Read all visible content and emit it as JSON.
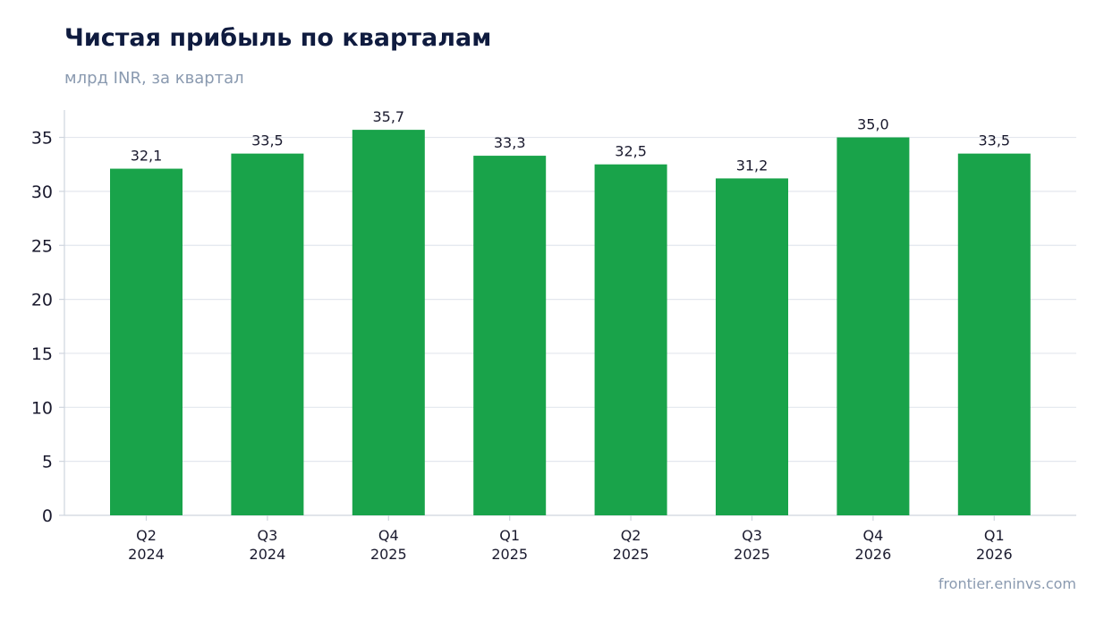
{
  "chart_data": {
    "type": "bar",
    "title": "Чистая прибыль по кварталам",
    "subtitle": "млрд INR, за квартал",
    "source": "frontier.eninvs.com",
    "xlabel": "",
    "ylabel": "",
    "ylim": [
      0,
      37.5
    ],
    "yticks": [
      0,
      5,
      10,
      15,
      20,
      25,
      30,
      35
    ],
    "grid": true,
    "legend": "none",
    "categories": [
      [
        "Q2",
        "2024"
      ],
      [
        "Q3",
        "2024"
      ],
      [
        "Q4",
        "2025"
      ],
      [
        "Q1",
        "2025"
      ],
      [
        "Q2",
        "2025"
      ],
      [
        "Q3",
        "2025"
      ],
      [
        "Q4",
        "2026"
      ],
      [
        "Q1",
        "2026"
      ]
    ],
    "values": [
      32.1,
      33.5,
      35.7,
      33.3,
      32.5,
      31.2,
      35.0,
      33.5
    ],
    "value_labels": [
      "32,1",
      "33,5",
      "35,7",
      "33,3",
      "32,5",
      "31,2",
      "35,0",
      "33,5"
    ],
    "colors": {
      "bar": "#19a34a",
      "grid": "#e3e7ee",
      "axis": "#cfd5de",
      "text": "#1a1a2e",
      "title": "#0f1b3f",
      "muted": "#8a9ab0"
    }
  }
}
